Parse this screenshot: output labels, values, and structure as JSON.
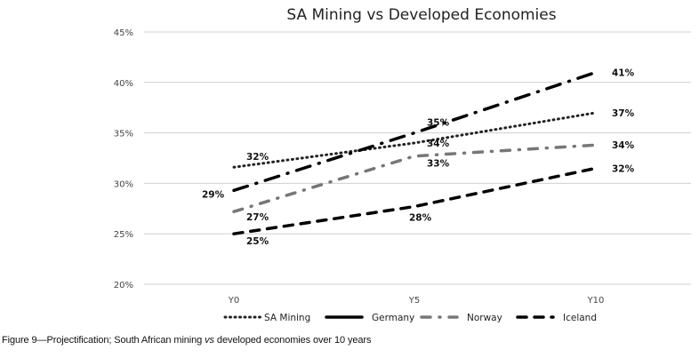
{
  "chart_data": {
    "type": "line",
    "title": "SA Mining vs Developed Economies",
    "xlabel": "",
    "ylabel": "",
    "categories": [
      "Y0",
      "Y5",
      "Y10"
    ],
    "ylim": [
      0.2,
      0.45
    ],
    "yticks": [
      "20%",
      "25%",
      "30%",
      "35%",
      "40%",
      "45%"
    ],
    "grid": true,
    "legend_position": "bottom",
    "series": [
      {
        "name": "SA Mining",
        "style": "dotted",
        "color": "#222222",
        "values": [
          0.316,
          0.34,
          0.37
        ],
        "labels": [
          "32%",
          "34%",
          "37%"
        ]
      },
      {
        "name": "Germany",
        "style": "long-dash-dot",
        "color": "#000000",
        "values": [
          0.293,
          0.35,
          0.41
        ],
        "labels": [
          "29%",
          "35%",
          "41%"
        ]
      },
      {
        "name": "Norway",
        "style": "dash-dot",
        "color": "#777777",
        "values": [
          0.272,
          0.327,
          0.338
        ],
        "labels": [
          "27%",
          "33%",
          "34%"
        ]
      },
      {
        "name": "Iceland",
        "style": "dashed",
        "color": "#000000",
        "values": [
          0.25,
          0.277,
          0.315
        ],
        "labels": [
          "25%",
          "28%",
          "32%"
        ]
      }
    ]
  },
  "caption": {
    "prefix": "Figure 9—Projectification; South African mining ",
    "italic": "vs",
    "suffix": " developed economies over 10 years"
  }
}
